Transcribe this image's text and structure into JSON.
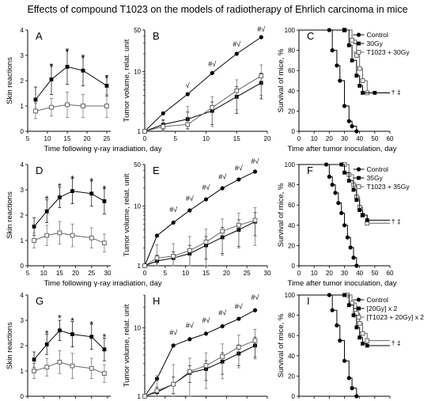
{
  "title": "Effects of compound T1023 on the models of radiotherapy of Ehrlich carcinoma in mice",
  "chart_data": [
    {
      "panel": "A",
      "type": "line",
      "ylabel": "Skin reactions",
      "xlabel": "Time following γ-ray irradiation, day",
      "xlim": [
        5,
        26
      ],
      "ylim": [
        0,
        4
      ],
      "yscale": "linear",
      "xticks": [
        5,
        10,
        15,
        20,
        25
      ],
      "yticks": [
        0,
        1,
        2,
        3,
        4
      ],
      "series": [
        {
          "style": "filled-square",
          "x": [
            7,
            11,
            15,
            19,
            25
          ],
          "y": [
            1.25,
            2.05,
            2.55,
            2.4,
            1.8
          ],
          "err": [
            0.5,
            0.6,
            0.7,
            0.6,
            0.4
          ]
        },
        {
          "style": "open-square",
          "x": [
            7,
            11,
            15,
            19,
            25
          ],
          "y": [
            0.8,
            0.95,
            1.05,
            1.0,
            1.0
          ],
          "err": [
            0.3,
            0.35,
            0.5,
            0.45,
            0.45
          ]
        }
      ],
      "annotations": [
        {
          "x": 11,
          "y": 2.65,
          "text": "*"
        },
        {
          "x": 15,
          "y": 3.25,
          "text": "*"
        },
        {
          "x": 19,
          "y": 3.0,
          "text": "*"
        },
        {
          "x": 25,
          "y": 2.2,
          "text": "*"
        }
      ]
    },
    {
      "panel": "B",
      "type": "line",
      "ylabel": "Tumor volume, relat. unit",
      "xlabel": "",
      "xlim": [
        0,
        20
      ],
      "ylim": [
        1,
        50
      ],
      "yscale": "log",
      "xticks": [
        0,
        5,
        10,
        15,
        20
      ],
      "yticks": [
        1,
        10,
        50
      ],
      "series": [
        {
          "style": "filled-circle",
          "x": [
            0,
            3,
            7,
            11,
            15,
            19
          ],
          "y": [
            1,
            2.0,
            4.2,
            9.5,
            20,
            38
          ],
          "err": [
            0,
            0,
            0,
            0,
            0,
            0
          ]
        },
        {
          "style": "filled-square",
          "x": [
            0,
            3,
            7,
            11,
            15,
            19
          ],
          "y": [
            1,
            1.3,
            1.6,
            2.2,
            3.8,
            6.5
          ],
          "err": [
            0,
            0.25,
            0.5,
            0.9,
            1.8,
            3
          ]
        },
        {
          "style": "open-square",
          "x": [
            0,
            3,
            7,
            11,
            15,
            19
          ],
          "y": [
            1,
            1.2,
            1.3,
            2.5,
            4.8,
            8.5
          ],
          "err": [
            0,
            0.3,
            1.3,
            1.3,
            2.5,
            4.5
          ]
        }
      ],
      "annotations": [
        {
          "x": 7,
          "y": 5.7,
          "text": "√"
        },
        {
          "x": 11,
          "y": 13,
          "text": "#√"
        },
        {
          "x": 15,
          "y": 28,
          "text": "#√"
        },
        {
          "x": 19,
          "y": 50,
          "text": "#√"
        }
      ]
    },
    {
      "panel": "C",
      "type": "line",
      "style": "survival",
      "ylabel": "Survival of mice, %",
      "xlabel": "Time after tumor inoculation, day",
      "xlim": [
        0,
        60
      ],
      "ylim": [
        0,
        100
      ],
      "yscale": "linear",
      "xticks": [
        0,
        10,
        20,
        30,
        40,
        50,
        60
      ],
      "yticks": [
        0,
        20,
        40,
        60,
        80,
        100
      ],
      "legend_position": "top-right",
      "series": [
        {
          "name": "Control",
          "style": "filled-circle",
          "x": [
            0,
            20,
            22,
            25,
            27,
            30,
            33,
            35,
            38
          ],
          "y": [
            100,
            100,
            80,
            65,
            50,
            25,
            10,
            5,
            0
          ]
        },
        {
          "name": "30Gy",
          "style": "filled-square",
          "x": [
            0,
            30,
            33,
            35,
            38,
            40,
            42,
            50,
            60
          ],
          "y": [
            100,
            100,
            85,
            70,
            55,
            45,
            38,
            38,
            38
          ]
        },
        {
          "name": "T1023 + 30Gy",
          "style": "open-square",
          "x": [
            0,
            30,
            35,
            38,
            40,
            42,
            45,
            60
          ],
          "y": [
            100,
            100,
            90,
            75,
            62,
            50,
            38,
            38
          ]
        }
      ],
      "annotations": [
        {
          "x": 63,
          "y": 38,
          "text": "† ‡"
        }
      ]
    },
    {
      "panel": "D",
      "type": "line",
      "ylabel": "Skin reactions",
      "xlabel": "Time following γ-ray irradiation, day",
      "xlim": [
        5,
        31
      ],
      "ylim": [
        0,
        4
      ],
      "yscale": "linear",
      "xticks": [
        5,
        10,
        15,
        20,
        25,
        30
      ],
      "yticks": [
        0,
        1,
        2,
        3,
        4
      ],
      "series": [
        {
          "style": "filled-square",
          "x": [
            7,
            11,
            15,
            19,
            25,
            29
          ],
          "y": [
            1.55,
            2.15,
            2.7,
            2.95,
            2.85,
            2.55
          ],
          "err": [
            0.35,
            0.45,
            0.4,
            0.5,
            0.5,
            0.5
          ]
        },
        {
          "style": "open-square",
          "x": [
            7,
            11,
            15,
            19,
            25,
            29
          ],
          "y": [
            1.0,
            1.2,
            1.3,
            1.2,
            1.1,
            0.9
          ],
          "err": [
            0.3,
            0.4,
            0.45,
            0.45,
            0.4,
            0.35
          ]
        }
      ],
      "annotations": [
        {
          "x": 11,
          "y": 2.75,
          "text": "*"
        },
        {
          "x": 15,
          "y": 3.25,
          "text": "*"
        },
        {
          "x": 19,
          "y": 3.55,
          "text": "*"
        },
        {
          "x": 25,
          "y": 3.45,
          "text": "*"
        },
        {
          "x": 29,
          "y": 3.15,
          "text": "*"
        }
      ]
    },
    {
      "panel": "E",
      "type": "line",
      "ylabel": "Tumor volume, relat. unit",
      "xlabel": "",
      "xlim": [
        0,
        30
      ],
      "ylim": [
        1,
        50
      ],
      "yscale": "log",
      "xticks": [
        0,
        5,
        10,
        15,
        20,
        25,
        30
      ],
      "yticks": [
        1,
        10,
        50
      ],
      "series": [
        {
          "style": "filled-circle",
          "x": [
            0,
            3,
            7,
            11,
            15,
            19,
            23,
            27
          ],
          "y": [
            1,
            3.2,
            5.3,
            8.5,
            13,
            20,
            28,
            38
          ],
          "err": [
            0,
            0,
            0,
            0,
            0,
            0,
            0,
            0
          ]
        },
        {
          "style": "filled-square",
          "x": [
            0,
            3,
            7,
            11,
            15,
            19,
            23,
            27
          ],
          "y": [
            1,
            1.2,
            1.35,
            1.6,
            2.2,
            3.0,
            4.0,
            5.5
          ],
          "err": [
            0,
            0.3,
            0.35,
            0.6,
            0.9,
            1.4,
            1.9,
            2.3
          ]
        },
        {
          "style": "open-square",
          "x": [
            0,
            3,
            7,
            11,
            15,
            19,
            23,
            27
          ],
          "y": [
            1,
            1.35,
            1.45,
            1.8,
            2.5,
            3.8,
            4.8,
            5.8
          ],
          "err": [
            0,
            0.9,
            0.9,
            1.3,
            1.6,
            2.3,
            2.8,
            3.6
          ]
        }
      ],
      "annotations": [
        {
          "x": 7,
          "y": 8.5,
          "text": "#√"
        },
        {
          "x": 11,
          "y": 13,
          "text": "#√"
        },
        {
          "x": 15,
          "y": 20,
          "text": "#√"
        },
        {
          "x": 19,
          "y": 30,
          "text": "#√"
        },
        {
          "x": 23,
          "y": 42,
          "text": "#√"
        },
        {
          "x": 27,
          "y": 55,
          "text": "#√"
        }
      ]
    },
    {
      "panel": "F",
      "type": "line",
      "style": "survival",
      "ylabel": "Survival of mice, %",
      "xlabel": "Time after tumor inoculation, day",
      "xlim": [
        0,
        60
      ],
      "ylim": [
        0,
        100
      ],
      "yscale": "linear",
      "xticks": [
        0,
        10,
        20,
        30,
        40,
        50,
        60
      ],
      "yticks": [
        0,
        20,
        40,
        60,
        80,
        100
      ],
      "legend_position": "top-right",
      "series": [
        {
          "name": "Control",
          "style": "filled-circle",
          "x": [
            0,
            18,
            20,
            22,
            24,
            26,
            28,
            30,
            32,
            34,
            36,
            38
          ],
          "y": [
            100,
            100,
            88,
            80,
            72,
            62,
            52,
            40,
            28,
            18,
            8,
            0
          ]
        },
        {
          "name": "35Gy",
          "style": "filled-square",
          "x": [
            0,
            28,
            30,
            33,
            36,
            38,
            40,
            42,
            45,
            60
          ],
          "y": [
            100,
            100,
            92,
            84,
            75,
            65,
            55,
            50,
            45,
            45
          ]
        },
        {
          "name": "T1023 + 35Gy",
          "style": "open-square",
          "x": [
            0,
            30,
            33,
            36,
            38,
            40,
            42,
            45,
            60
          ],
          "y": [
            100,
            100,
            90,
            80,
            68,
            58,
            50,
            42,
            42
          ]
        }
      ],
      "annotations": [
        {
          "x": 63,
          "y": 43,
          "text": "† ‡"
        }
      ]
    },
    {
      "panel": "G",
      "type": "line",
      "ylabel": "Skin reactions",
      "xlabel": "Time following γ-ray irradiation, day",
      "xlim": [
        5,
        31
      ],
      "ylim": [
        0,
        4
      ],
      "yscale": "linear",
      "xticks": [
        5,
        10,
        15,
        20,
        25,
        30
      ],
      "yticks": [
        0,
        1,
        2,
        3,
        4
      ],
      "series": [
        {
          "style": "filled-square",
          "x": [
            7,
            11,
            15,
            19,
            25,
            29
          ],
          "y": [
            1.45,
            2.05,
            2.6,
            2.45,
            2.35,
            1.85
          ],
          "err": [
            0.3,
            0.4,
            0.4,
            0.5,
            0.5,
            0.45
          ]
        },
        {
          "style": "open-square",
          "x": [
            7,
            11,
            15,
            19,
            25,
            29
          ],
          "y": [
            1.0,
            1.15,
            1.35,
            1.2,
            1.1,
            0.9
          ],
          "err": [
            0.3,
            0.35,
            0.45,
            0.5,
            0.4,
            0.35
          ]
        }
      ],
      "annotations": [
        {
          "x": 11,
          "y": 2.6,
          "text": "*"
        },
        {
          "x": 15,
          "y": 3.2,
          "text": "*"
        },
        {
          "x": 19,
          "y": 3.1,
          "text": "*"
        },
        {
          "x": 25,
          "y": 2.95,
          "text": "*"
        },
        {
          "x": 29,
          "y": 2.45,
          "text": "*"
        }
      ]
    },
    {
      "panel": "H",
      "type": "line",
      "ylabel": "Tumor volume, relat. unit",
      "xlabel": "",
      "xlim": [
        0,
        30
      ],
      "ylim": [
        1,
        30
      ],
      "yscale": "log",
      "xticks": [
        0,
        5,
        10,
        15,
        20,
        25,
        30
      ],
      "yticks": [
        1,
        10
      ],
      "series": [
        {
          "style": "filled-circle",
          "x": [
            0,
            3,
            7,
            11,
            15,
            19,
            23,
            27
          ],
          "y": [
            1,
            1.8,
            5.5,
            6.8,
            8.2,
            10.5,
            13.5,
            18
          ],
          "err": [
            0,
            0,
            0,
            0,
            0,
            0,
            0,
            0
          ]
        },
        {
          "style": "filled-square",
          "x": [
            0,
            3,
            7,
            11,
            15,
            19,
            23,
            27
          ],
          "y": [
            1,
            1.15,
            1.5,
            2.2,
            2.5,
            3.2,
            4.2,
            5.5
          ],
          "err": [
            0,
            0.2,
            0.4,
            0.6,
            0.8,
            1.1,
            1.4,
            1.8
          ]
        },
        {
          "style": "open-square",
          "x": [
            0,
            3,
            7,
            11,
            15,
            19,
            23,
            27
          ],
          "y": [
            1,
            1.2,
            1.5,
            2.3,
            2.8,
            3.8,
            5.2,
            6.5
          ],
          "err": [
            0,
            0.8,
            1.4,
            1.3,
            1.5,
            2.0,
            2.6,
            3.0
          ]
        }
      ],
      "annotations": [
        {
          "x": 7,
          "y": 8.3,
          "text": "#√"
        },
        {
          "x": 11,
          "y": 10.5,
          "text": "#√"
        },
        {
          "x": 15,
          "y": 12.5,
          "text": "#√"
        },
        {
          "x": 19,
          "y": 16,
          "text": "#√"
        },
        {
          "x": 23,
          "y": 20,
          "text": "#√"
        },
        {
          "x": 27,
          "y": 27,
          "text": "#√"
        }
      ]
    },
    {
      "panel": "I",
      "type": "line",
      "style": "survival",
      "ylabel": "Survival of mice, %",
      "xlabel": "Time after tumor inoculation, day",
      "xlim": [
        0,
        60
      ],
      "ylim": [
        0,
        100
      ],
      "yscale": "linear",
      "xticks": [
        0,
        10,
        20,
        30,
        40,
        50,
        60
      ],
      "yticks": [
        0,
        20,
        40,
        60,
        80,
        100
      ],
      "legend_position": "top-right",
      "series": [
        {
          "name": "Control",
          "style": "filled-circle",
          "x": [
            0,
            20,
            22,
            25,
            27,
            30,
            33,
            35,
            38
          ],
          "y": [
            100,
            100,
            85,
            70,
            55,
            35,
            18,
            8,
            0
          ]
        },
        {
          "name": "[20Gy] x 2",
          "style": "filled-square",
          "x": [
            0,
            30,
            33,
            36,
            38,
            40,
            42,
            45,
            60
          ],
          "y": [
            100,
            100,
            90,
            80,
            68,
            58,
            52,
            50,
            50
          ]
        },
        {
          "name": "[T1023 + 20Gy] x 2",
          "style": "open-square",
          "x": [
            0,
            32,
            35,
            38,
            40,
            42,
            45,
            60
          ],
          "y": [
            100,
            100,
            92,
            82,
            72,
            62,
            55,
            55
          ]
        }
      ],
      "annotations": [
        {
          "x": 63,
          "y": 52,
          "text": "† ‡"
        }
      ]
    }
  ]
}
